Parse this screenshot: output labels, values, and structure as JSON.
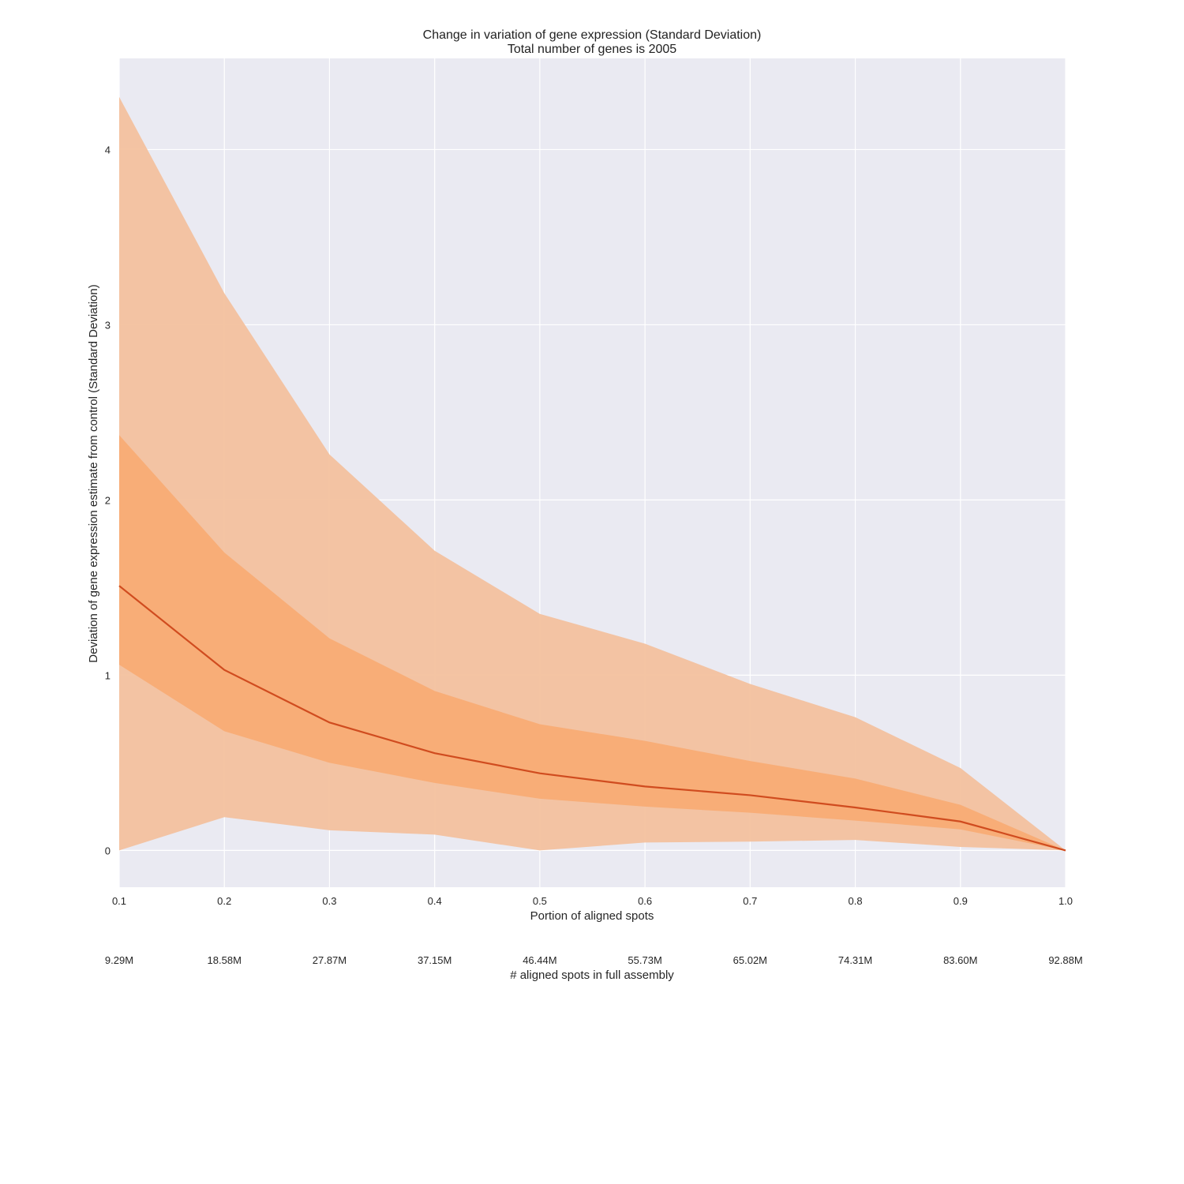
{
  "chart_data": {
    "type": "area",
    "title": "Change in variation of gene expression (Standard Deviation)",
    "subtitle": "Total number of genes is 2005",
    "xlabel": "Portion of aligned spots",
    "ylabel": "Deviation of gene expression estimate from control (Standard Deviation)",
    "secondary_xlabel": "# aligned spots in full assembly",
    "x": [
      0.1,
      0.2,
      0.3,
      0.4,
      0.5,
      0.6,
      0.7,
      0.8,
      0.9,
      1.0
    ],
    "x_tick_labels": [
      "0.1",
      "0.2",
      "0.3",
      "0.4",
      "0.5",
      "0.6",
      "0.7",
      "0.8",
      "0.9",
      "1.0"
    ],
    "secondary_x_tick_labels": [
      "9.29M",
      "18.58M",
      "27.87M",
      "37.15M",
      "46.44M",
      "55.73M",
      "65.02M",
      "74.31M",
      "83.60M",
      "92.88M"
    ],
    "y_ticks": [
      0,
      1,
      2,
      3,
      4
    ],
    "y_tick_labels": [
      "0",
      "1",
      "2",
      "3",
      "4"
    ],
    "xlim": [
      0.1,
      1.0
    ],
    "ylim": [
      -0.21,
      4.52
    ],
    "grid": true,
    "colors": {
      "plot_background": "#eaeaf2",
      "grid": "#ffffff",
      "outer_band": "#f3c19e",
      "inner_band": "#f8ab72",
      "median_line": "#d04c1f"
    },
    "bands": {
      "outer_upper": [
        4.3,
        3.18,
        2.26,
        1.71,
        1.35,
        1.18,
        0.95,
        0.76,
        0.47,
        0.0
      ],
      "outer_lower": [
        0.0,
        0.19,
        0.115,
        0.09,
        0.0,
        0.045,
        0.05,
        0.06,
        0.02,
        0.0
      ],
      "inner_upper": [
        2.37,
        1.7,
        1.21,
        0.91,
        0.72,
        0.625,
        0.51,
        0.41,
        0.26,
        0.0
      ],
      "inner_lower": [
        1.06,
        0.68,
        0.5,
        0.385,
        0.295,
        0.25,
        0.215,
        0.17,
        0.12,
        0.0
      ]
    },
    "series": [
      {
        "values": [
          1.51,
          1.03,
          0.73,
          0.555,
          0.44,
          0.365,
          0.315,
          0.245,
          0.165,
          0.0
        ]
      }
    ]
  }
}
